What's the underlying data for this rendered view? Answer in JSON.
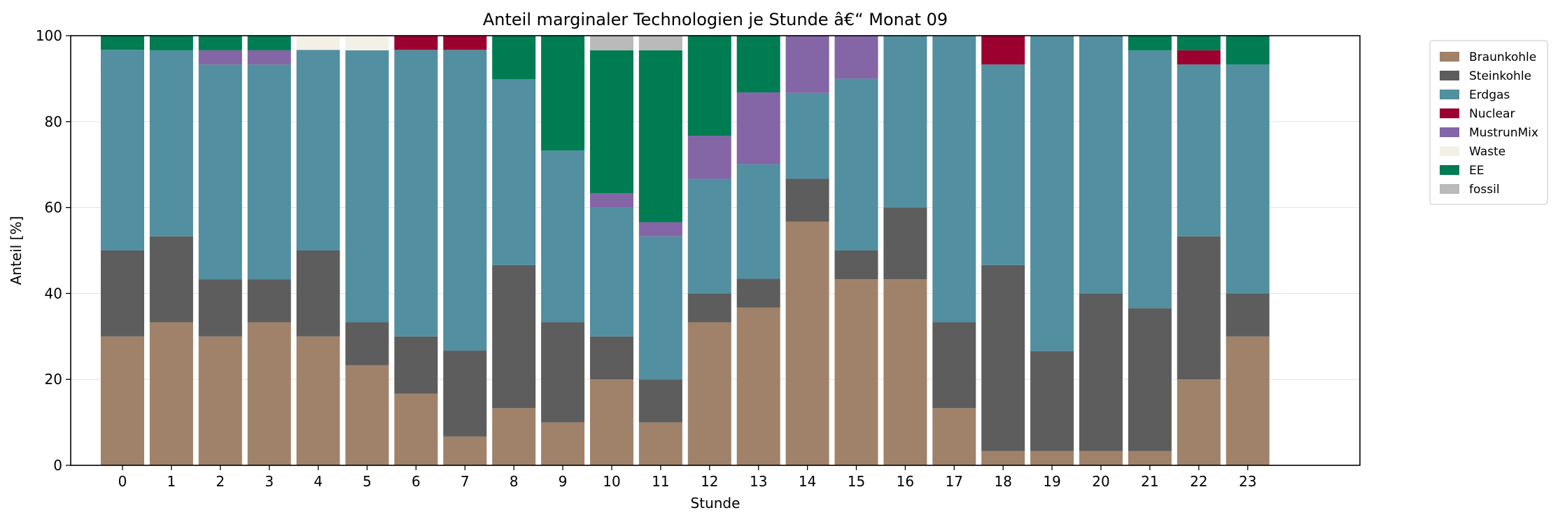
{
  "chart_data": {
    "type": "bar",
    "stacked": true,
    "title": "Anteil marginaler Technologien je Stunde â€“ Monat 09",
    "xlabel": "Stunde",
    "ylabel": "Anteil [%]",
    "ylim": [
      0,
      100
    ],
    "yticks": [
      0,
      20,
      40,
      60,
      80,
      100
    ],
    "grid": "horizontal",
    "legend_position": "outside-top-right",
    "categories": [
      "0",
      "1",
      "2",
      "3",
      "4",
      "5",
      "6",
      "7",
      "8",
      "9",
      "10",
      "11",
      "12",
      "13",
      "14",
      "15",
      "16",
      "17",
      "18",
      "19",
      "20",
      "21",
      "22",
      "23"
    ],
    "series": [
      {
        "name": "Braunkohle",
        "color": "#a0826a",
        "values": [
          30.0,
          33.3,
          30.0,
          33.3,
          30.0,
          23.3,
          16.7,
          6.7,
          13.3,
          10.0,
          20.0,
          10.0,
          33.3,
          36.7,
          56.7,
          43.3,
          43.3,
          13.3,
          3.3,
          3.3,
          3.3,
          3.3,
          20.0,
          30.0
        ]
      },
      {
        "name": "Steinkohle",
        "color": "#5d5d5d",
        "values": [
          20.0,
          20.0,
          13.3,
          10.0,
          20.0,
          10.0,
          13.3,
          20.0,
          33.3,
          23.3,
          10.0,
          10.0,
          6.7,
          6.7,
          10.0,
          6.7,
          16.7,
          20.0,
          43.3,
          23.3,
          36.7,
          33.3,
          33.3,
          10.0
        ]
      },
      {
        "name": "Erdgas",
        "color": "#528fa0",
        "values": [
          46.7,
          43.3,
          50.0,
          50.0,
          46.7,
          63.3,
          66.7,
          70.0,
          43.3,
          40.0,
          30.0,
          33.3,
          26.7,
          26.7,
          20.0,
          40.0,
          40.0,
          66.7,
          46.7,
          73.3,
          60.0,
          60.0,
          40.0,
          53.3
        ]
      },
      {
        "name": "Nuclear",
        "color": "#9b0030",
        "values": [
          0,
          0,
          0,
          0,
          0,
          0,
          3.3,
          3.3,
          0,
          0,
          0,
          0,
          0,
          0,
          0,
          0,
          0,
          0,
          6.7,
          0,
          0,
          0,
          3.3,
          0
        ]
      },
      {
        "name": "MustrunMix",
        "color": "#8465a6",
        "values": [
          0,
          0,
          3.3,
          3.3,
          0,
          0,
          0,
          0,
          0,
          0,
          3.3,
          3.3,
          10.0,
          16.7,
          13.3,
          10.0,
          0,
          0,
          0,
          0,
          0,
          0,
          0,
          0
        ]
      },
      {
        "name": "Waste",
        "color": "#f3f0e6",
        "values": [
          0,
          0,
          0,
          0,
          3.3,
          3.3,
          0,
          0,
          0,
          0,
          0,
          0,
          0,
          0,
          0,
          0,
          0,
          0,
          0,
          0,
          0,
          0,
          0,
          0
        ]
      },
      {
        "name": "EE",
        "color": "#007c52",
        "values": [
          3.3,
          3.3,
          3.3,
          3.3,
          0,
          0,
          0,
          0,
          10.0,
          26.7,
          33.3,
          40.0,
          23.3,
          13.3,
          0,
          0,
          0,
          0,
          0,
          0,
          0,
          3.3,
          3.3,
          6.7
        ]
      },
      {
        "name": "fossil",
        "color": "#bababa",
        "values": [
          0,
          0,
          0,
          0,
          0,
          0,
          0,
          0,
          0,
          0,
          3.3,
          3.3,
          0,
          0,
          0,
          0,
          0,
          0,
          0,
          0,
          0,
          0,
          0,
          0
        ]
      }
    ]
  }
}
